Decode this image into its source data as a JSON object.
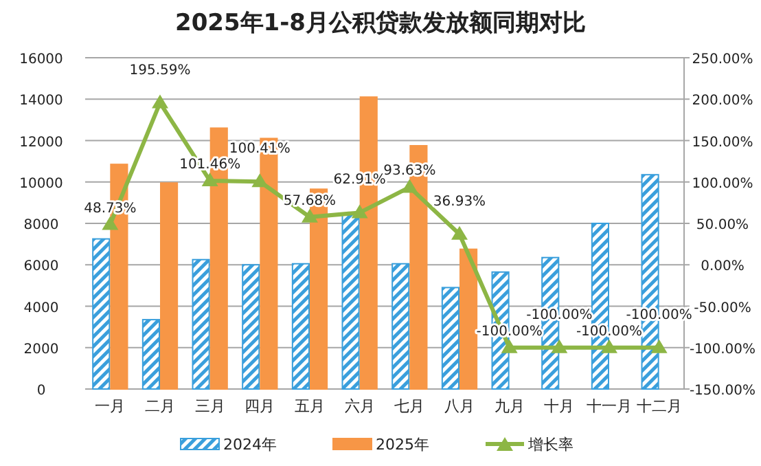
{
  "chart_data": {
    "type": "bar",
    "title": "2025年1-8月公积贷款发放额同期对比",
    "categories": [
      "一月",
      "二月",
      "三月",
      "四月",
      "五月",
      "六月",
      "七月",
      "八月",
      "九月",
      "十月",
      "十一月",
      "十二月"
    ],
    "series": [
      {
        "name": "2024年",
        "color": "#3a9fdc",
        "values": [
          7250,
          3350,
          6250,
          6000,
          6050,
          8450,
          6050,
          4900,
          5650,
          6350,
          8000,
          10350
        ]
      },
      {
        "name": "2025年",
        "color": "#f79646",
        "values": [
          10850,
          9950,
          12600,
          12100,
          9650,
          14100,
          11750,
          6750,
          null,
          null,
          null,
          null
        ]
      },
      {
        "name": "增长率",
        "type": "line",
        "axis": "y2",
        "color": "#8db645",
        "marker": "triangle",
        "values": [
          48.73,
          195.59,
          101.46,
          100.41,
          57.68,
          62.91,
          93.63,
          36.93,
          -100,
          -100,
          -100,
          -100
        ],
        "value_labels": [
          "48.73%",
          "195.59%",
          "101.46%",
          "100.41%",
          "57.68%",
          "62.91%",
          "93.63%",
          "36.93%",
          "-100.00%",
          "-100.00%",
          "-100.00%",
          "-100.00%"
        ]
      }
    ],
    "ylim": [
      0,
      16000
    ],
    "yticks": [
      0,
      2000,
      4000,
      6000,
      8000,
      10000,
      12000,
      14000,
      16000
    ],
    "y2lim": [
      -150,
      250
    ],
    "y2ticks": [
      {
        "value": -150,
        "label": "-150.00%"
      },
      {
        "value": -100,
        "label": "-100.00%"
      },
      {
        "value": -50,
        "label": "-50.00%"
      },
      {
        "value": 0,
        "label": "0.00%"
      },
      {
        "value": 50,
        "label": "50.00%"
      },
      {
        "value": 100,
        "label": "100.00%"
      },
      {
        "value": 150,
        "label": "150.00%"
      },
      {
        "value": 200,
        "label": "200.00%"
      },
      {
        "value": 250,
        "label": "250.00%"
      }
    ],
    "grid": "y",
    "legend": "bottom"
  }
}
